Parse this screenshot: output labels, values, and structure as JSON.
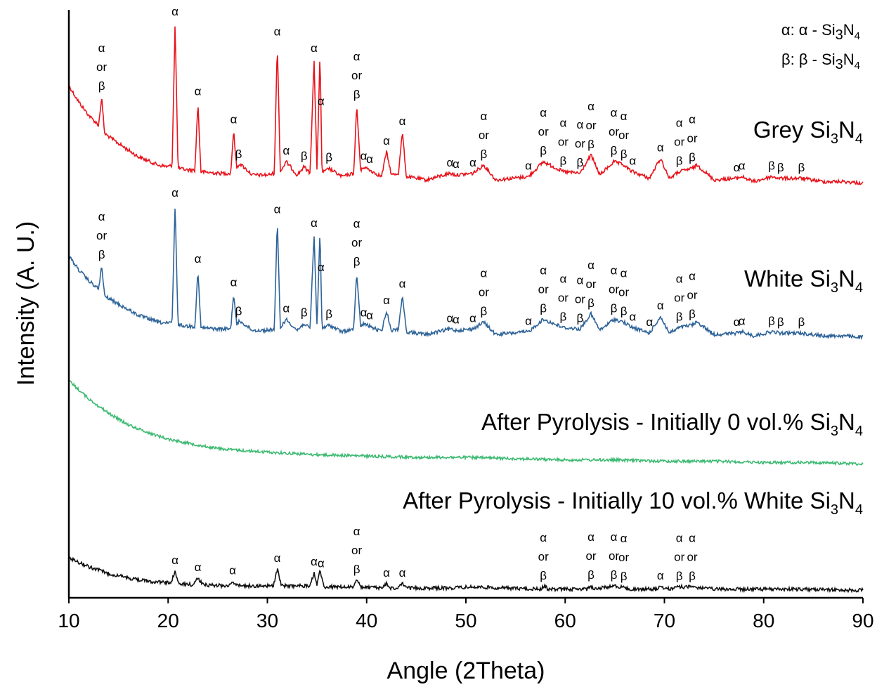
{
  "chart_data": {
    "type": "line",
    "title": "",
    "xlabel": "Angle (2Theta)",
    "ylabel": "Intensity (A. U.)",
    "xlim": [
      10,
      90
    ],
    "xticks": [
      "10",
      "20",
      "30",
      "40",
      "50",
      "60",
      "70",
      "80",
      "90"
    ],
    "yticks": [],
    "grid": false,
    "legend": {
      "position": "top-right",
      "entries": [
        {
          "symbol": "α",
          "text": "α - Si",
          "sub": "3",
          "text2": "N",
          "sub2": "4"
        },
        {
          "symbol": "β",
          "text": "β - Si",
          "sub": "3",
          "text2": "N",
          "sub2": "4"
        }
      ]
    },
    "series": [
      {
        "name": "Grey Si3N4",
        "label": {
          "main": "Grey Si",
          "sub": "3",
          "main2": "N",
          "sub2": "4"
        },
        "color": "#e8141c",
        "x": [
          10.0,
          11.0,
          12.0,
          13.0,
          13.3,
          13.6,
          15.0,
          17.0,
          19.0,
          20.0,
          20.4,
          20.7,
          21.0,
          22.0,
          22.7,
          23.0,
          23.3,
          25.0,
          26.3,
          26.6,
          26.9,
          27.2,
          28.5,
          30.0,
          30.7,
          31.0,
          31.3,
          31.9,
          33.0,
          33.7,
          34.3,
          34.7,
          35.0,
          35.3,
          35.5,
          35.8,
          36.2,
          37.5,
          38.7,
          39.0,
          39.4,
          39.7,
          40.3,
          41.5,
          42.0,
          42.5,
          43.2,
          43.6,
          44.0,
          46.0,
          48.4,
          49.0,
          50.7,
          51.8,
          53.0,
          56.3,
          57.8,
          59.8,
          61.5,
          62.6,
          63.5,
          64.9,
          65.9,
          66.5,
          66.8,
          68.5,
          69.6,
          70.5,
          71.5,
          72.8,
          73.3,
          75.0,
          77.3,
          77.8,
          79.0,
          80.8,
          81.7,
          83.8,
          86.0,
          88.0,
          90.0
        ],
        "y": [
          0.62,
          0.52,
          0.44,
          0.38,
          0.55,
          0.33,
          0.27,
          0.19,
          0.14,
          0.13,
          0.14,
          1.0,
          0.12,
          0.11,
          0.11,
          0.52,
          0.1,
          0.09,
          0.09,
          0.35,
          0.12,
          0.15,
          0.08,
          0.08,
          0.09,
          0.88,
          0.1,
          0.16,
          0.08,
          0.13,
          0.09,
          0.78,
          0.1,
          0.82,
          0.1,
          0.1,
          0.12,
          0.07,
          0.09,
          0.5,
          0.1,
          0.13,
          0.11,
          0.07,
          0.22,
          0.08,
          0.09,
          0.34,
          0.07,
          0.05,
          0.09,
          0.08,
          0.09,
          0.14,
          0.05,
          0.07,
          0.16,
          0.1,
          0.09,
          0.2,
          0.08,
          0.16,
          0.14,
          0.11,
          0.1,
          0.06,
          0.18,
          0.06,
          0.1,
          0.12,
          0.14,
          0.05,
          0.06,
          0.07,
          0.04,
          0.07,
          0.06,
          0.06,
          0.04,
          0.04,
          0.03
        ]
      },
      {
        "name": "White Si3N4",
        "label": {
          "main": "White Si",
          "sub": "3",
          "main2": "N",
          "sub2": "4"
        },
        "color": "#2f6499",
        "x": [
          10.0,
          11.0,
          12.0,
          13.0,
          13.3,
          13.6,
          15.0,
          17.0,
          19.0,
          20.0,
          20.4,
          20.7,
          21.0,
          22.0,
          22.7,
          23.0,
          23.3,
          25.0,
          26.3,
          26.6,
          26.9,
          27.2,
          28.5,
          30.0,
          30.7,
          31.0,
          31.3,
          31.9,
          33.0,
          33.7,
          34.3,
          34.7,
          35.0,
          35.3,
          35.5,
          35.8,
          36.2,
          37.5,
          38.7,
          39.0,
          39.4,
          39.7,
          40.3,
          41.5,
          42.0,
          42.5,
          43.2,
          43.6,
          44.0,
          46.0,
          48.4,
          49.0,
          50.7,
          51.8,
          53.0,
          56.3,
          57.8,
          59.8,
          61.5,
          62.6,
          63.5,
          64.9,
          65.9,
          66.5,
          66.8,
          68.5,
          69.6,
          70.5,
          71.5,
          72.8,
          73.3,
          75.0,
          77.3,
          77.8,
          79.0,
          80.8,
          81.7,
          83.8,
          86.0,
          88.0,
          90.0
        ],
        "y": [
          0.62,
          0.52,
          0.44,
          0.38,
          0.55,
          0.33,
          0.27,
          0.19,
          0.14,
          0.13,
          0.14,
          1.0,
          0.12,
          0.11,
          0.11,
          0.52,
          0.1,
          0.09,
          0.09,
          0.35,
          0.12,
          0.15,
          0.08,
          0.08,
          0.09,
          0.88,
          0.1,
          0.16,
          0.08,
          0.13,
          0.09,
          0.78,
          0.1,
          0.82,
          0.1,
          0.1,
          0.12,
          0.07,
          0.09,
          0.5,
          0.1,
          0.13,
          0.11,
          0.07,
          0.22,
          0.08,
          0.09,
          0.34,
          0.07,
          0.05,
          0.09,
          0.08,
          0.09,
          0.14,
          0.05,
          0.07,
          0.16,
          0.1,
          0.09,
          0.2,
          0.08,
          0.16,
          0.14,
          0.11,
          0.1,
          0.06,
          0.18,
          0.06,
          0.1,
          0.12,
          0.14,
          0.05,
          0.06,
          0.07,
          0.04,
          0.07,
          0.06,
          0.06,
          0.04,
          0.04,
          0.03
        ]
      },
      {
        "name": "After Pyrolysis - Initially 0 vol.% Si3N4",
        "label": {
          "main": "After Pyrolysis - Initially 0 vol.% Si",
          "sub": "3",
          "main2": "N",
          "sub2": "4"
        },
        "color": "#3dba72",
        "x": [
          10,
          12,
          14,
          16,
          18,
          20,
          22,
          24,
          26,
          28,
          30,
          35,
          40,
          45,
          50,
          55,
          60,
          65,
          70,
          75,
          80,
          85,
          90
        ],
        "y": [
          0.66,
          0.52,
          0.41,
          0.32,
          0.26,
          0.21,
          0.18,
          0.15,
          0.13,
          0.12,
          0.11,
          0.09,
          0.08,
          0.07,
          0.07,
          0.06,
          0.05,
          0.05,
          0.04,
          0.04,
          0.03,
          0.03,
          0.02
        ]
      },
      {
        "name": "After Pyrolysis - Initially 10 vol.% White Si3N4",
        "label": {
          "main": "After Pyrolysis - Initially 10 vol.% White Si",
          "sub": "3",
          "main2": "N",
          "sub2": "4"
        },
        "color": "#111111",
        "x": [
          10.0,
          12.0,
          14.0,
          16.0,
          18.0,
          20.0,
          20.3,
          20.7,
          21.0,
          22.5,
          23.0,
          23.5,
          26.0,
          26.5,
          27.0,
          30.6,
          31.0,
          31.4,
          34.3,
          34.7,
          35.0,
          35.3,
          35.7,
          38.6,
          39.0,
          39.4,
          41.6,
          42.0,
          42.4,
          43.2,
          43.6,
          44.0,
          48.0,
          50.7,
          54.0,
          57.5,
          57.9,
          58.3,
          62.2,
          62.6,
          63.0,
          64.9,
          65.8,
          66.3,
          69.3,
          69.7,
          70.1,
          71.5,
          72.8,
          75.0,
          80.8,
          83.8,
          90.0
        ],
        "y": [
          0.3,
          0.22,
          0.16,
          0.12,
          0.09,
          0.08,
          0.08,
          0.18,
          0.07,
          0.06,
          0.12,
          0.06,
          0.05,
          0.09,
          0.05,
          0.05,
          0.2,
          0.05,
          0.05,
          0.17,
          0.05,
          0.19,
          0.04,
          0.04,
          0.1,
          0.04,
          0.03,
          0.07,
          0.03,
          0.03,
          0.07,
          0.03,
          0.03,
          0.04,
          0.03,
          0.02,
          0.05,
          0.02,
          0.02,
          0.05,
          0.02,
          0.05,
          0.04,
          0.02,
          0.02,
          0.05,
          0.02,
          0.04,
          0.04,
          0.02,
          0.02,
          0.02,
          0.01
        ]
      }
    ],
    "peak_annotations": [
      {
        "series": 0,
        "lines": [
          {
            "x": 13.3,
            "text": "α or β"
          },
          {
            "x": 20.7,
            "text": "α"
          },
          {
            "x": 23.0,
            "text": "α"
          },
          {
            "x": 26.6,
            "text": "α"
          },
          {
            "x": 27.1,
            "text": "β"
          },
          {
            "x": 31.0,
            "text": "α"
          },
          {
            "x": 31.9,
            "text": "α"
          },
          {
            "x": 33.7,
            "text": "β"
          },
          {
            "x": 34.7,
            "text": "α"
          },
          {
            "x": 35.4,
            "text": "α"
          },
          {
            "x": 36.2,
            "text": "β"
          },
          {
            "x": 39.0,
            "text": "α or β"
          },
          {
            "x": 39.7,
            "text": "α"
          },
          {
            "x": 40.3,
            "text": "α"
          },
          {
            "x": 42.0,
            "text": "α"
          },
          {
            "x": 43.6,
            "text": "α"
          },
          {
            "x": 48.4,
            "text": "α"
          },
          {
            "x": 49.0,
            "text": "α"
          },
          {
            "x": 50.7,
            "text": "α"
          },
          {
            "x": 51.8,
            "text": "α or β"
          },
          {
            "x": 56.3,
            "text": "α"
          },
          {
            "x": 57.8,
            "text": "α or β"
          },
          {
            "x": 59.8,
            "text": "α or β"
          },
          {
            "x": 61.5,
            "text": "α or β"
          },
          {
            "x": 62.6,
            "text": "α or β"
          },
          {
            "x": 64.9,
            "text": "α or β"
          },
          {
            "x": 65.9,
            "text": "α or β"
          },
          {
            "x": 66.8,
            "text": "α"
          },
          {
            "x": 69.6,
            "text": "α"
          },
          {
            "x": 71.5,
            "text": "α or β"
          },
          {
            "x": 72.8,
            "text": "α or β"
          },
          {
            "x": 77.3,
            "text": "α"
          },
          {
            "x": 77.8,
            "text": "α"
          },
          {
            "x": 80.8,
            "text": "β"
          },
          {
            "x": 81.7,
            "text": "β"
          },
          {
            "x": 83.8,
            "text": "β"
          }
        ]
      },
      {
        "series": 1,
        "lines": [
          {
            "x": 13.3,
            "text": "α or β"
          },
          {
            "x": 20.7,
            "text": "α"
          },
          {
            "x": 23.0,
            "text": "α"
          },
          {
            "x": 26.6,
            "text": "α"
          },
          {
            "x": 27.1,
            "text": "β"
          },
          {
            "x": 31.0,
            "text": "α"
          },
          {
            "x": 31.9,
            "text": "α"
          },
          {
            "x": 33.7,
            "text": "β"
          },
          {
            "x": 34.7,
            "text": "α"
          },
          {
            "x": 35.4,
            "text": "α"
          },
          {
            "x": 36.2,
            "text": "β"
          },
          {
            "x": 39.0,
            "text": "α or β"
          },
          {
            "x": 39.7,
            "text": "α"
          },
          {
            "x": 40.3,
            "text": "α"
          },
          {
            "x": 42.0,
            "text": "α"
          },
          {
            "x": 43.6,
            "text": "α"
          },
          {
            "x": 48.4,
            "text": "α"
          },
          {
            "x": 49.0,
            "text": "α"
          },
          {
            "x": 50.7,
            "text": "α"
          },
          {
            "x": 51.8,
            "text": "α or β"
          },
          {
            "x": 56.3,
            "text": "α"
          },
          {
            "x": 57.8,
            "text": "α or β"
          },
          {
            "x": 59.8,
            "text": "α or β"
          },
          {
            "x": 61.5,
            "text": "α or β"
          },
          {
            "x": 62.6,
            "text": "α or β"
          },
          {
            "x": 64.9,
            "text": "α or β"
          },
          {
            "x": 65.9,
            "text": "α or β"
          },
          {
            "x": 66.8,
            "text": "α"
          },
          {
            "x": 68.5,
            "text": "α"
          },
          {
            "x": 69.6,
            "text": "α"
          },
          {
            "x": 71.5,
            "text": "α or β"
          },
          {
            "x": 72.8,
            "text": "α or β"
          },
          {
            "x": 77.3,
            "text": "α"
          },
          {
            "x": 77.8,
            "text": "α"
          },
          {
            "x": 80.8,
            "text": "β"
          },
          {
            "x": 81.7,
            "text": "β"
          },
          {
            "x": 83.8,
            "text": "β"
          }
        ]
      },
      {
        "series": 3,
        "lines": [
          {
            "x": 20.7,
            "text": "α"
          },
          {
            "x": 23.0,
            "text": "α"
          },
          {
            "x": 26.5,
            "text": "α"
          },
          {
            "x": 31.0,
            "text": "α"
          },
          {
            "x": 34.7,
            "text": "α"
          },
          {
            "x": 35.4,
            "text": "α"
          },
          {
            "x": 39.0,
            "text": "α or β"
          },
          {
            "x": 42.0,
            "text": "α"
          },
          {
            "x": 43.6,
            "text": "α"
          },
          {
            "x": 57.8,
            "text": "α or β"
          },
          {
            "x": 62.6,
            "text": "α or β"
          },
          {
            "x": 64.9,
            "text": "α or β"
          },
          {
            "x": 65.9,
            "text": "α or β"
          },
          {
            "x": 69.6,
            "text": "α"
          },
          {
            "x": 71.5,
            "text": "α or β"
          },
          {
            "x": 72.8,
            "text": "α or β"
          }
        ]
      }
    ]
  }
}
